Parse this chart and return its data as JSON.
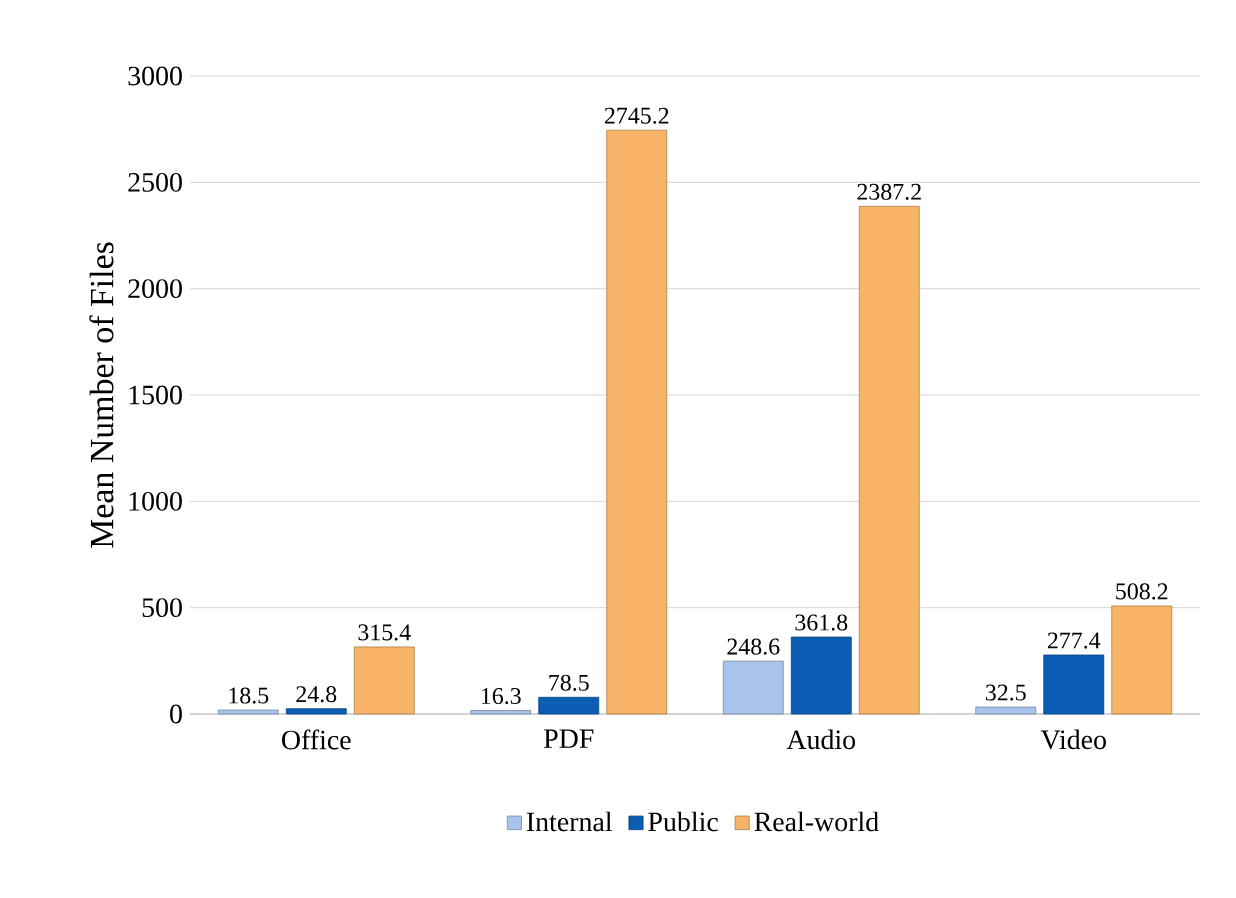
{
  "chart_data": {
    "type": "bar",
    "ylabel": "Mean Number of Files",
    "categories": [
      "Office",
      "PDF",
      "Audio",
      "Video"
    ],
    "series": [
      {
        "name": "Internal",
        "color": "#a9c4eb",
        "values": [
          18.5,
          16.3,
          248.6,
          32.5
        ]
      },
      {
        "name": "Public",
        "color": "#0b5eb4",
        "values": [
          24.8,
          78.5,
          361.8,
          277.4
        ]
      },
      {
        "name": "Real-world",
        "color": "#f7b468",
        "values": [
          315.4,
          2745.2,
          2387.2,
          508.2
        ]
      }
    ],
    "ylim": [
      0,
      3000
    ],
    "yticks": [
      0,
      500,
      1000,
      1500,
      2000,
      2500,
      3000
    ],
    "grid": "y",
    "legend": "bottom",
    "data_labels": true
  }
}
